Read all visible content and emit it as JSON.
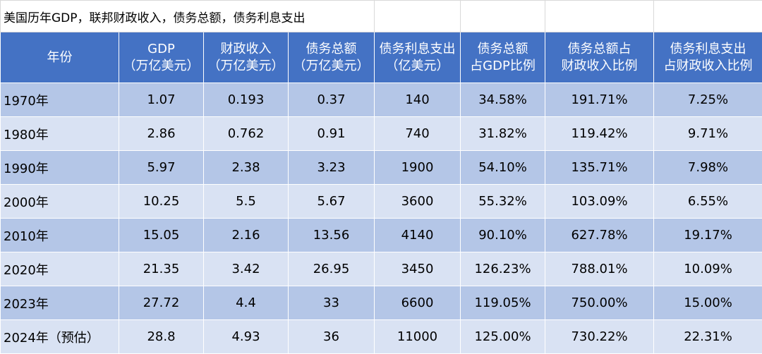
{
  "title": "美国历年GDP，联邦财政收入，债务总额，债务利息支出",
  "headers": [
    {
      "line1": "年份",
      "line2": ""
    },
    {
      "line1": "GDP",
      "line2": "（万亿美元）"
    },
    {
      "line1": "财政收入",
      "line2": "（万亿美元）"
    },
    {
      "line1": "债务总额",
      "line2": "（万亿美元）"
    },
    {
      "line1": "债务利息支出",
      "line2": "（亿美元）"
    },
    {
      "line1": "债务总额",
      "line2": "占GDP比例"
    },
    {
      "line1": "债务总额占",
      "line2": "财政收入比例"
    },
    {
      "line1": "债务利息支出",
      "line2": "占财政收入比例"
    }
  ],
  "rows": [
    [
      "1970年",
      "1.07",
      "0.193",
      "0.37",
      "140",
      "34.58%",
      "191.71%",
      "7.25%"
    ],
    [
      "1980年",
      "2.86",
      "0.762",
      "0.91",
      "740",
      "31.82%",
      "119.42%",
      "9.71%"
    ],
    [
      "1990年",
      "5.97",
      "2.38",
      "3.23",
      "1900",
      "54.10%",
      "135.71%",
      "7.98%"
    ],
    [
      "2000年",
      "10.25",
      "5.5",
      "5.67",
      "3600",
      "55.32%",
      "103.09%",
      "6.55%"
    ],
    [
      "2010年",
      "15.05",
      "2.16",
      "13.56",
      "4140",
      "90.10%",
      "627.78%",
      "19.17%"
    ],
    [
      "2020年",
      "21.35",
      "3.42",
      "26.95",
      "3450",
      "126.23%",
      "788.01%",
      "10.09%"
    ],
    [
      "2023年",
      "27.72",
      "4.4",
      "33",
      "6600",
      "119.05%",
      "750.00%",
      "15.00%"
    ],
    [
      "2024年（预估）",
      "28.8",
      "4.93",
      "36",
      "11000",
      "125.00%",
      "730.22%",
      "22.31%"
    ]
  ],
  "colors": {
    "header_bg": "#4472c4",
    "row_dark": "#b4c6e7",
    "row_light": "#d9e2f3"
  }
}
